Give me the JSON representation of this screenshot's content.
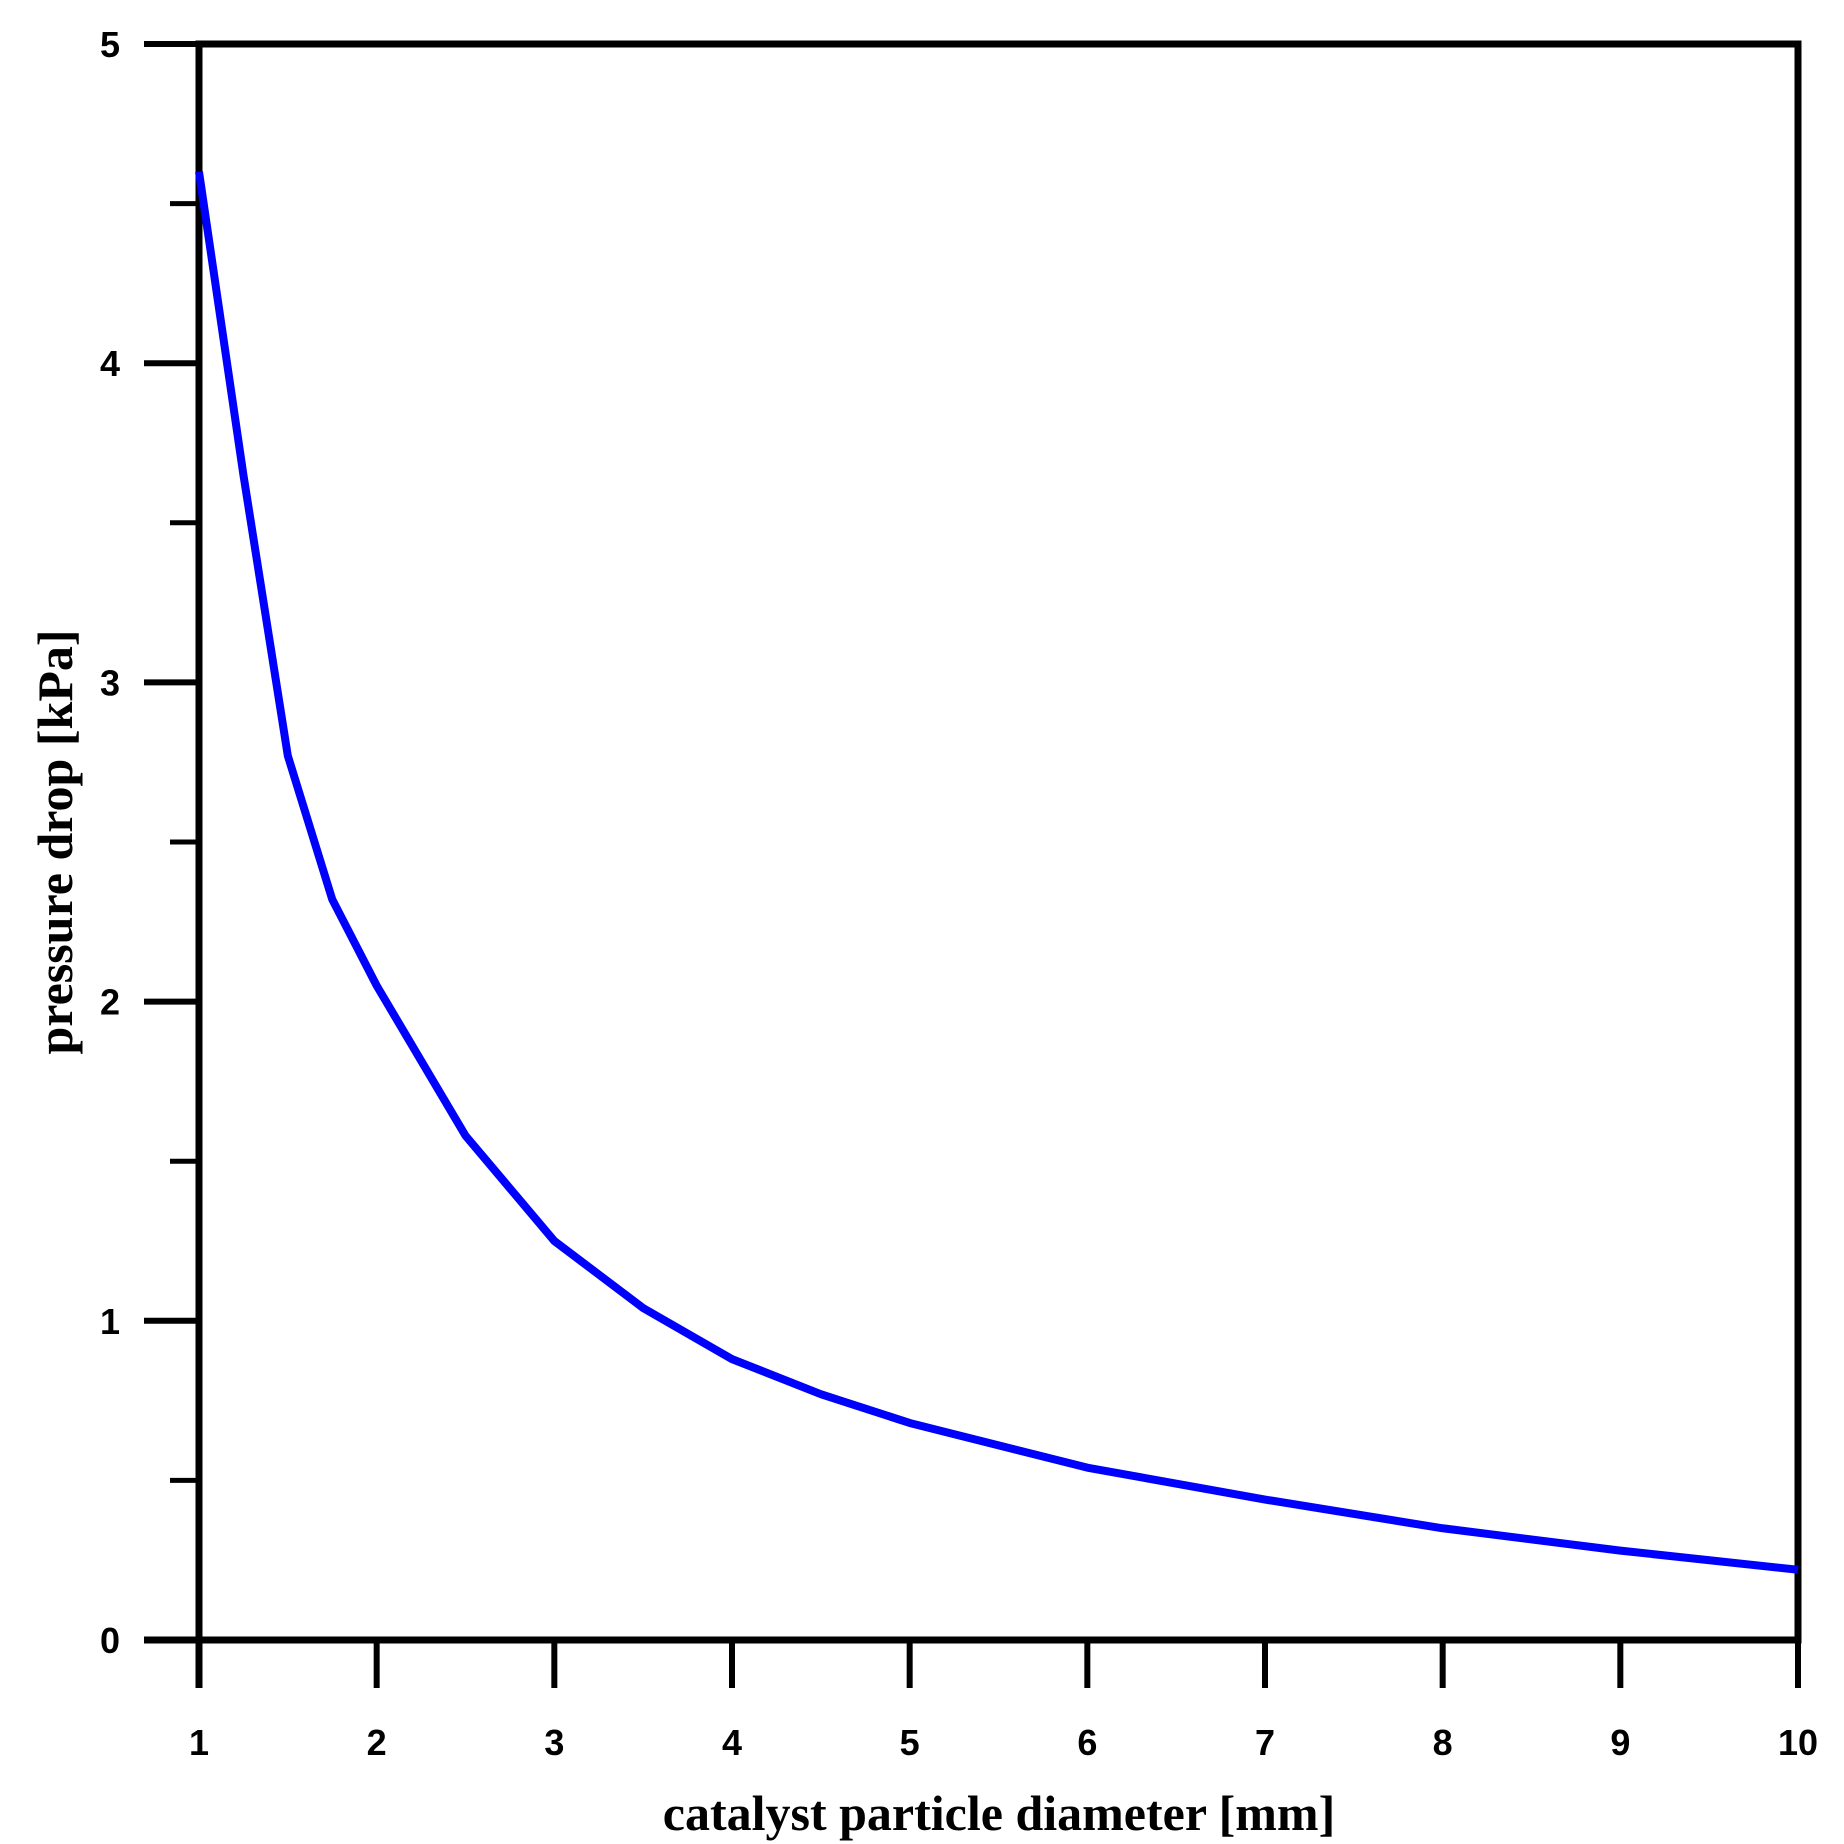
{
  "chart_data": {
    "type": "line",
    "x_label": "catalyst particle diameter [mm]",
    "y_label": "pressure drop [kPa]",
    "x": [
      1,
      1.25,
      1.5,
      1.75,
      2,
      2.5,
      3,
      3.5,
      4,
      4.5,
      5,
      6,
      7,
      8,
      9,
      10
    ],
    "series": [
      {
        "color": "#0000ff",
        "values": [
          4.6,
          3.65,
          2.77,
          2.32,
          2.05,
          1.58,
          1.25,
          1.04,
          0.88,
          0.77,
          0.68,
          0.54,
          0.44,
          0.35,
          0.28,
          0.22
        ]
      }
    ],
    "xlim": [
      1,
      10
    ],
    "xticks": [
      1,
      2,
      3,
      4,
      5,
      6,
      7,
      8,
      9,
      10
    ],
    "ylim": [
      0,
      5
    ],
    "yticks": [
      0,
      1,
      2,
      3,
      4,
      5
    ],
    "grid": false
  }
}
